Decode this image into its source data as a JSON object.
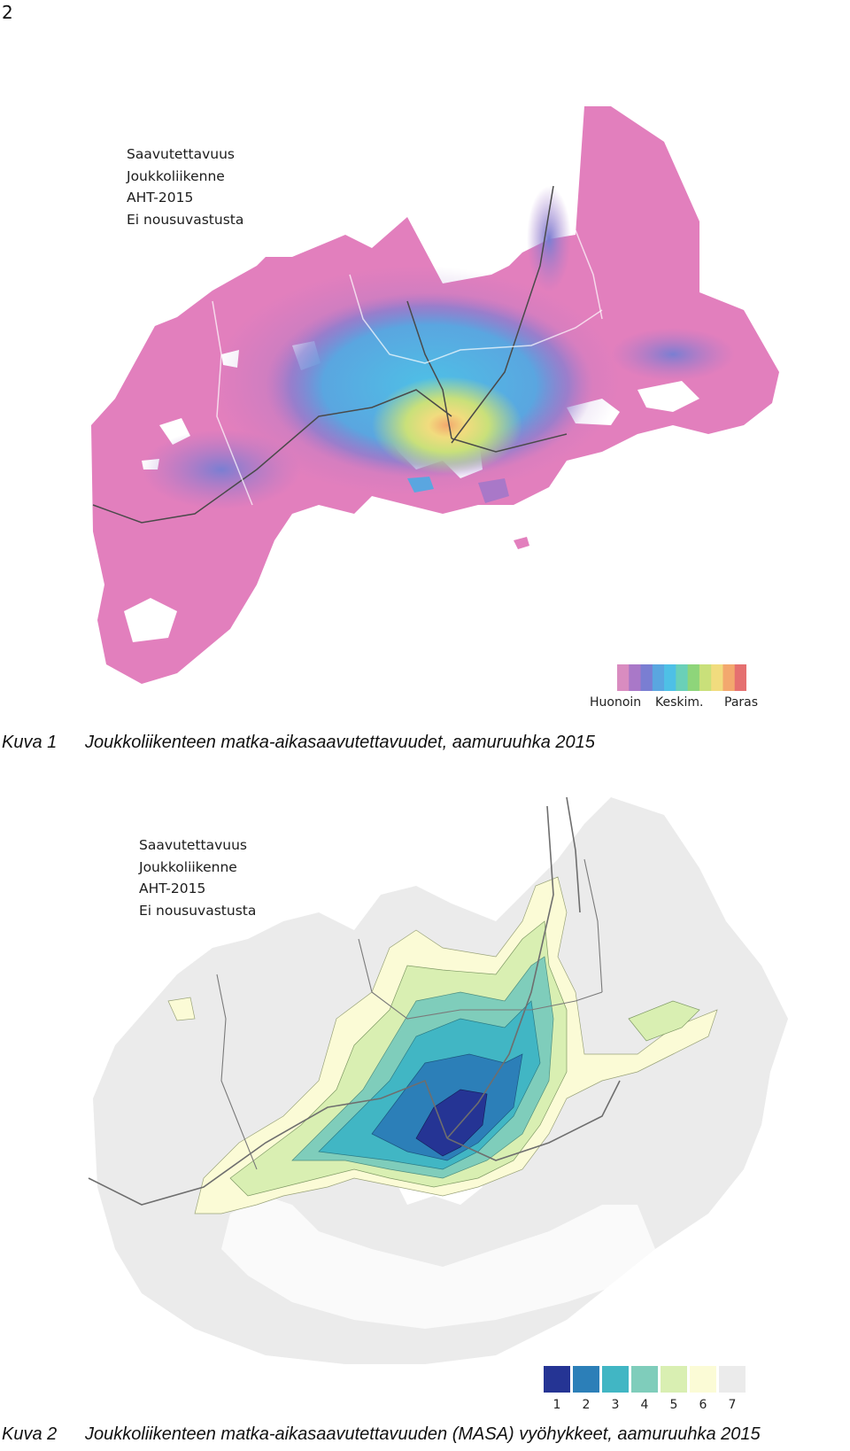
{
  "page_number": "2",
  "figure1": {
    "label_lines": [
      "Saavutettavuus",
      "Joukkoliikenne",
      "AHT-2015",
      "Ei nousuvastusta"
    ],
    "legend": {
      "low": "Huonoin",
      "mid": "Keskim.",
      "high": "Paras",
      "colors": [
        "#d98cc0",
        "#a978c8",
        "#7a7ed2",
        "#5aa6e0",
        "#4ec0e6",
        "#6ad0b8",
        "#8ed57a",
        "#c9e07a",
        "#f1dc7e",
        "#f3a86e",
        "#e57070"
      ]
    },
    "caption_number": "Kuva 1",
    "caption_text": "Joukkoliikenteen matka-aikasaavutettavuudet, aamuruuhka 2015"
  },
  "figure2": {
    "label_lines": [
      "Saavutettavuus",
      "Joukkoliikenne",
      "AHT-2015",
      "Ei nousuvastusta"
    ],
    "legend": {
      "classes": [
        "1",
        "2",
        "3",
        "4",
        "5",
        "6",
        "7"
      ],
      "colors": [
        "#253494",
        "#2c7fb8",
        "#41b6c4",
        "#7fcdbb",
        "#d9efb2",
        "#fbfbd6",
        "#ebebeb"
      ]
    },
    "caption_number": "Kuva 2",
    "caption_text": "Joukkoliikenteen matka-aikasaavutettavuuden (MASA) vyöhykkeet, aamuruuhka 2015"
  }
}
